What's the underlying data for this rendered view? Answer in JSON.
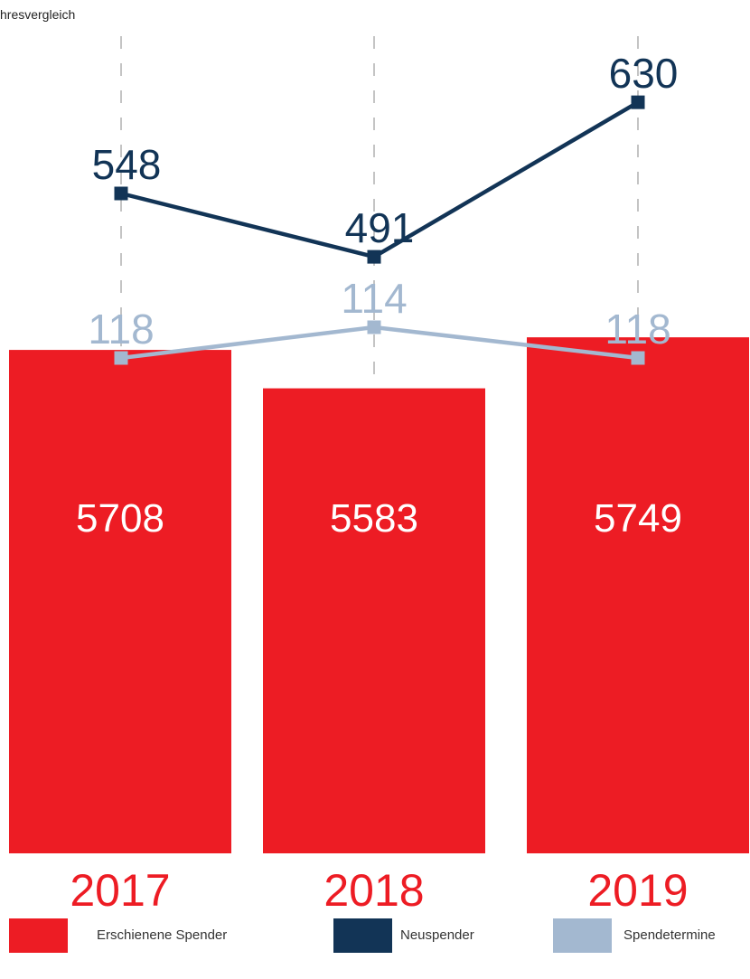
{
  "title": "hresvergleich",
  "colors": {
    "bar": "#ed1c24",
    "neuspender": "#123456",
    "spendetermine": "#a3b8d0",
    "gridline": "#888888"
  },
  "chart_data": {
    "type": "bar",
    "title": "hresvergleich",
    "categories": [
      "2017",
      "2018",
      "2019"
    ],
    "series": [
      {
        "name": "Erschienene Spender",
        "type": "bar",
        "values": [
          5708,
          5583,
          5749
        ]
      },
      {
        "name": "Neuspender",
        "type": "line",
        "values": [
          548,
          491,
          630
        ]
      },
      {
        "name": "Spendetermine",
        "type": "line",
        "values": [
          118,
          114,
          118
        ]
      }
    ],
    "legend_position": "bottom",
    "grid": false
  },
  "legend": [
    {
      "label": "Erschienene Spender",
      "color": "#ed1c24"
    },
    {
      "label": "Neuspender",
      "color": "#123456"
    },
    {
      "label": "Spendetermine",
      "color": "#a3b8d0"
    }
  ]
}
